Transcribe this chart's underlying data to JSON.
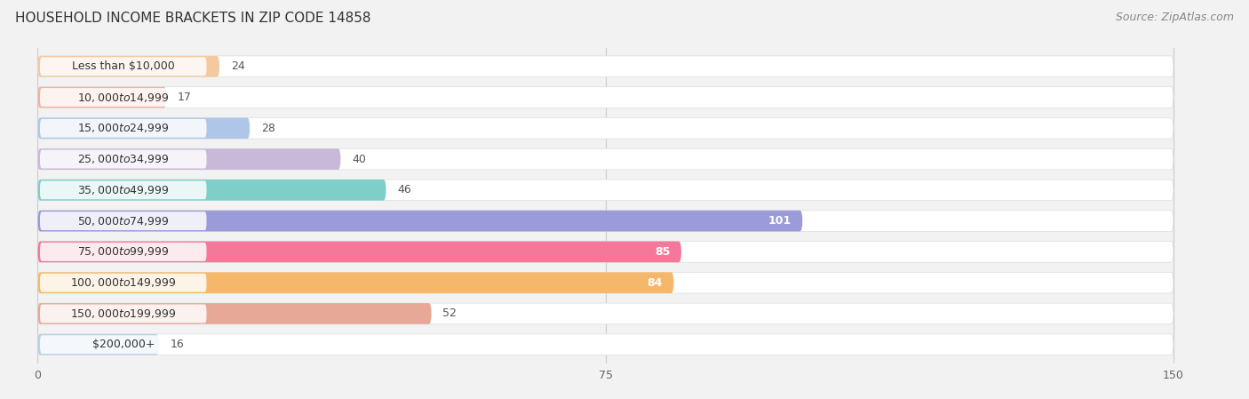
{
  "title": "HOUSEHOLD INCOME BRACKETS IN ZIP CODE 14858",
  "source": "Source: ZipAtlas.com",
  "categories": [
    "Less than $10,000",
    "$10,000 to $14,999",
    "$15,000 to $24,999",
    "$25,000 to $34,999",
    "$35,000 to $49,999",
    "$50,000 to $74,999",
    "$75,000 to $99,999",
    "$100,000 to $149,999",
    "$150,000 to $199,999",
    "$200,000+"
  ],
  "values": [
    24,
    17,
    28,
    40,
    46,
    101,
    85,
    84,
    52,
    16
  ],
  "bar_colors": [
    "#f5c9a0",
    "#f5b0a0",
    "#aec6e8",
    "#c9b8d8",
    "#7ececa",
    "#9b9bda",
    "#f5789a",
    "#f5b86a",
    "#e8a898",
    "#b8d0e8"
  ],
  "circle_colors": [
    "#f5aa70",
    "#f08080",
    "#7aa8d8",
    "#a898c8",
    "#40b8b8",
    "#7878c8",
    "#f04878",
    "#f09840",
    "#d88878",
    "#88a8d8"
  ],
  "data_max": 150,
  "xticks": [
    0,
    75,
    150
  ],
  "background_color": "#f2f2f2",
  "bar_bg_color": "#ffffff",
  "label_color_dark": "#555555",
  "label_color_light": "#ffffff",
  "title_fontsize": 11,
  "source_fontsize": 9,
  "bar_label_fontsize": 9,
  "tick_fontsize": 9,
  "cat_label_fontsize": 9,
  "white_label_threshold": 70
}
